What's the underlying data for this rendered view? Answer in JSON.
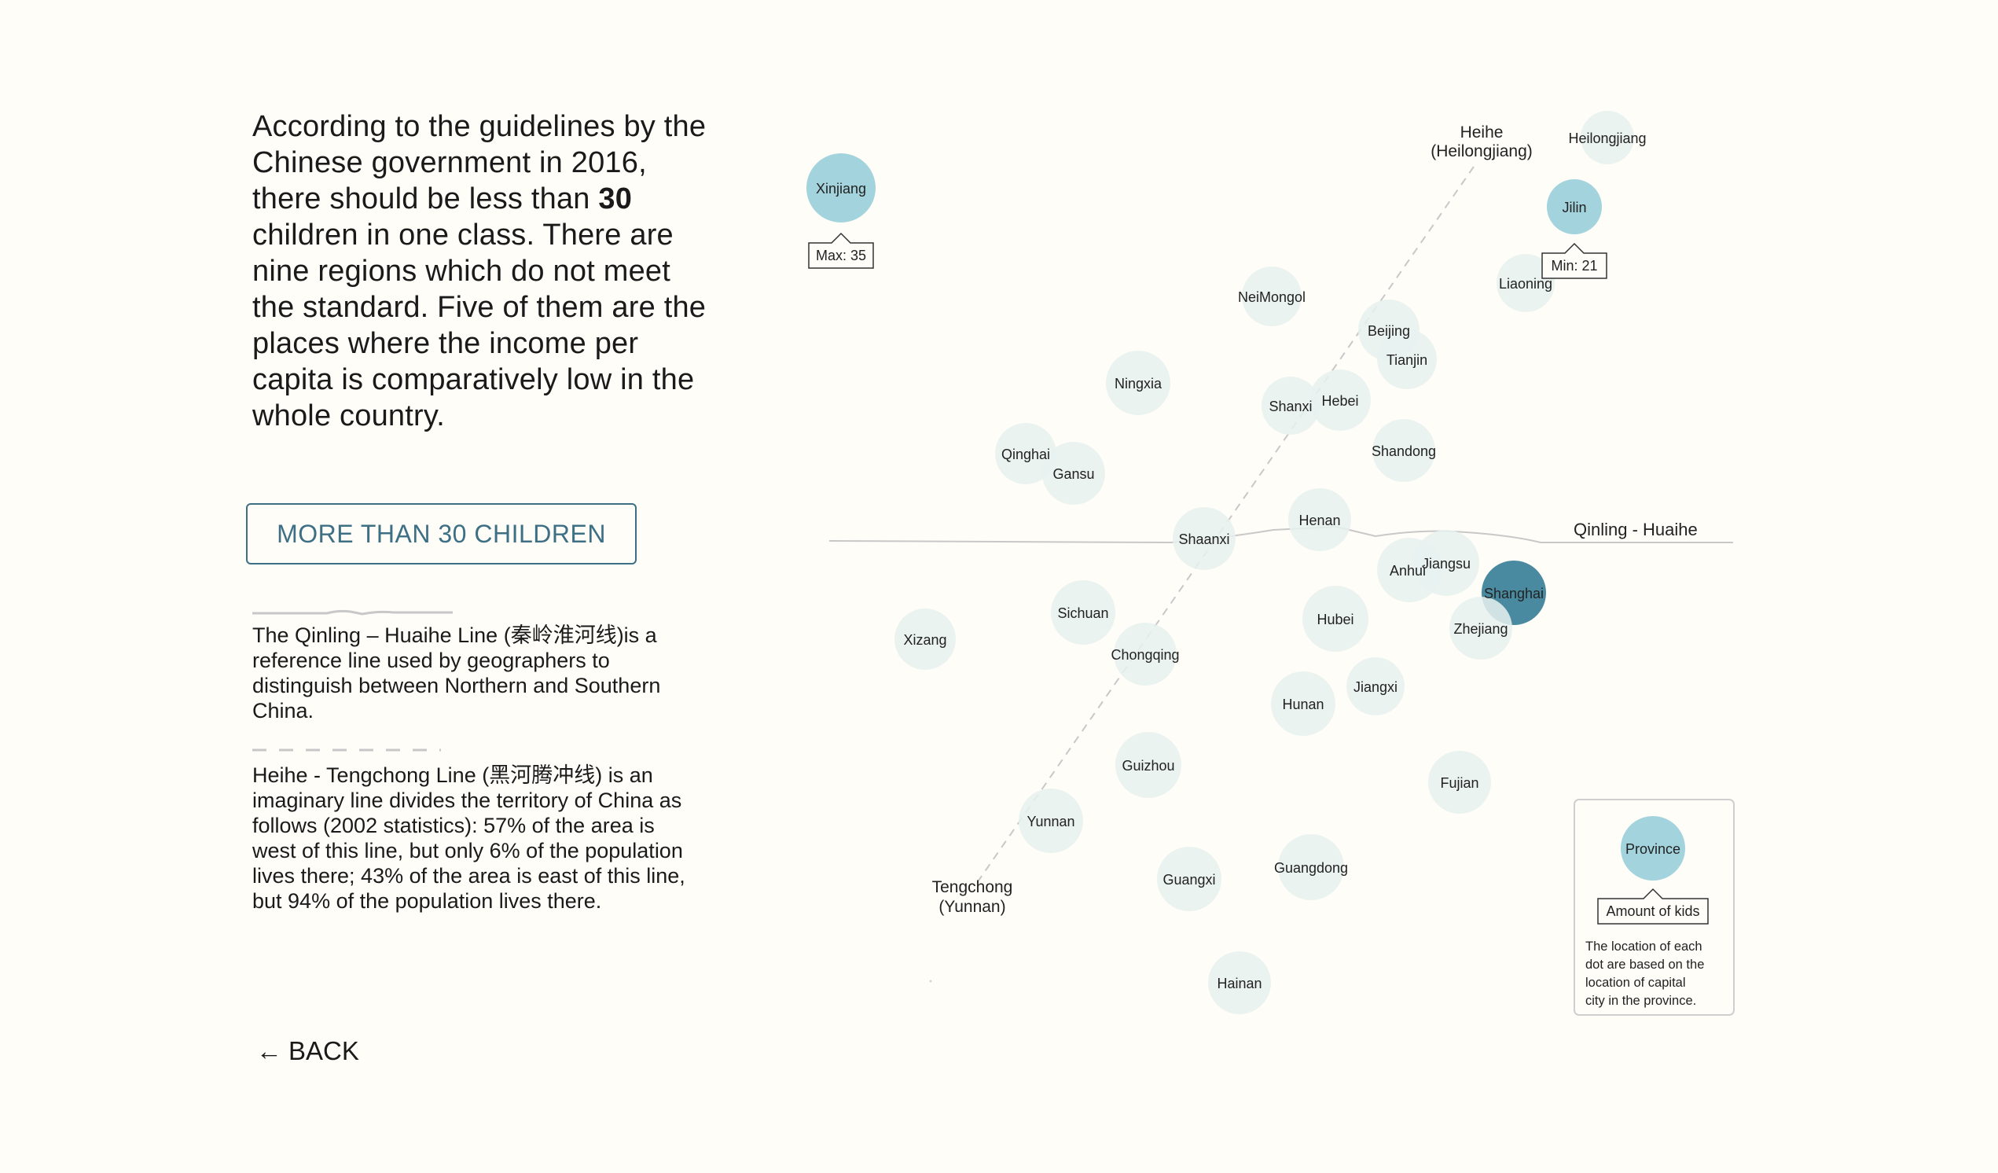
{
  "intro": {
    "part1": "According to the guidelines by the Chinese government in 2016, there should be less than ",
    "bold": "30",
    "part2": " children in one class. There are nine regions which do not meet the standard. Five of them are the places where the income per capita is comparatively low in the whole country."
  },
  "filter_button": {
    "label": "MORE THAN 30 CHILDREN"
  },
  "qinling_desc": "The Qinling – Huaihe Line (秦岭淮河线)is a reference line used by geographers to distinguish between Northern and Southern China.",
  "heihe_desc": "Heihe - Tengchong Line (黑河腾冲线) is an imaginary line divides the territory of China as follows (2002 statistics): 57% of the area is west of this line, but only 6% of the population lives there; 43% of the area is east of this line, but 94% of the population lives there.",
  "back": {
    "arrow": "←",
    "label": "BACK"
  },
  "colors": {
    "faded": "#e7f1f0",
    "highlight": "#a3d3dd",
    "selected": "#4a8aa0",
    "line": "#c8c8c8"
  },
  "chart_data": {
    "type": "scatter",
    "encoding": "bubble placement = capital city location; bubble size = amount of kids",
    "max_label": "Max: 35",
    "min_label": "Min: 21",
    "max_province": "Xinjiang",
    "min_province": "Jilin",
    "qinling_label": "Qinling - Huaihe",
    "heihe_top_label": [
      "Heihe",
      "(Heilongjiang)"
    ],
    "heihe_bottom_label": [
      "Tengchong",
      "(Yunnan)"
    ],
    "legend": {
      "circle_label": "Province",
      "size_label": "Amount of kids",
      "note": [
        "The location of each",
        "dot are based on the",
        "location of capital",
        "city in the province."
      ]
    },
    "provinces": [
      {
        "name": "Xinjiang",
        "state": "highlight"
      },
      {
        "name": "Heilongjiang",
        "state": "faded"
      },
      {
        "name": "Jilin",
        "state": "highlight"
      },
      {
        "name": "Liaoning",
        "state": "faded"
      },
      {
        "name": "NeiMongol",
        "state": "faded"
      },
      {
        "name": "Beijing",
        "state": "faded"
      },
      {
        "name": "Tianjin",
        "state": "faded"
      },
      {
        "name": "Ningxia",
        "state": "faded"
      },
      {
        "name": "Shanxi",
        "state": "faded"
      },
      {
        "name": "Hebei",
        "state": "faded"
      },
      {
        "name": "Shandong",
        "state": "faded"
      },
      {
        "name": "Qinghai",
        "state": "faded"
      },
      {
        "name": "Gansu",
        "state": "faded"
      },
      {
        "name": "Shaanxi",
        "state": "faded"
      },
      {
        "name": "Henan",
        "state": "faded"
      },
      {
        "name": "Jiangsu",
        "state": "faded"
      },
      {
        "name": "Anhui",
        "state": "faded"
      },
      {
        "name": "Shanghai",
        "state": "selected"
      },
      {
        "name": "Zhejiang",
        "state": "faded"
      },
      {
        "name": "Sichuan",
        "state": "faded"
      },
      {
        "name": "Xizang",
        "state": "faded"
      },
      {
        "name": "Hubei",
        "state": "faded"
      },
      {
        "name": "Chongqing",
        "state": "faded"
      },
      {
        "name": "Jiangxi",
        "state": "faded"
      },
      {
        "name": "Hunan",
        "state": "faded"
      },
      {
        "name": "Guizhou",
        "state": "faded"
      },
      {
        "name": "Fujian",
        "state": "faded"
      },
      {
        "name": "Yunnan",
        "state": "faded"
      },
      {
        "name": "Guangxi",
        "state": "faded"
      },
      {
        "name": "Guangdong",
        "state": "faded"
      },
      {
        "name": "Hainan",
        "state": "faded"
      }
    ]
  }
}
